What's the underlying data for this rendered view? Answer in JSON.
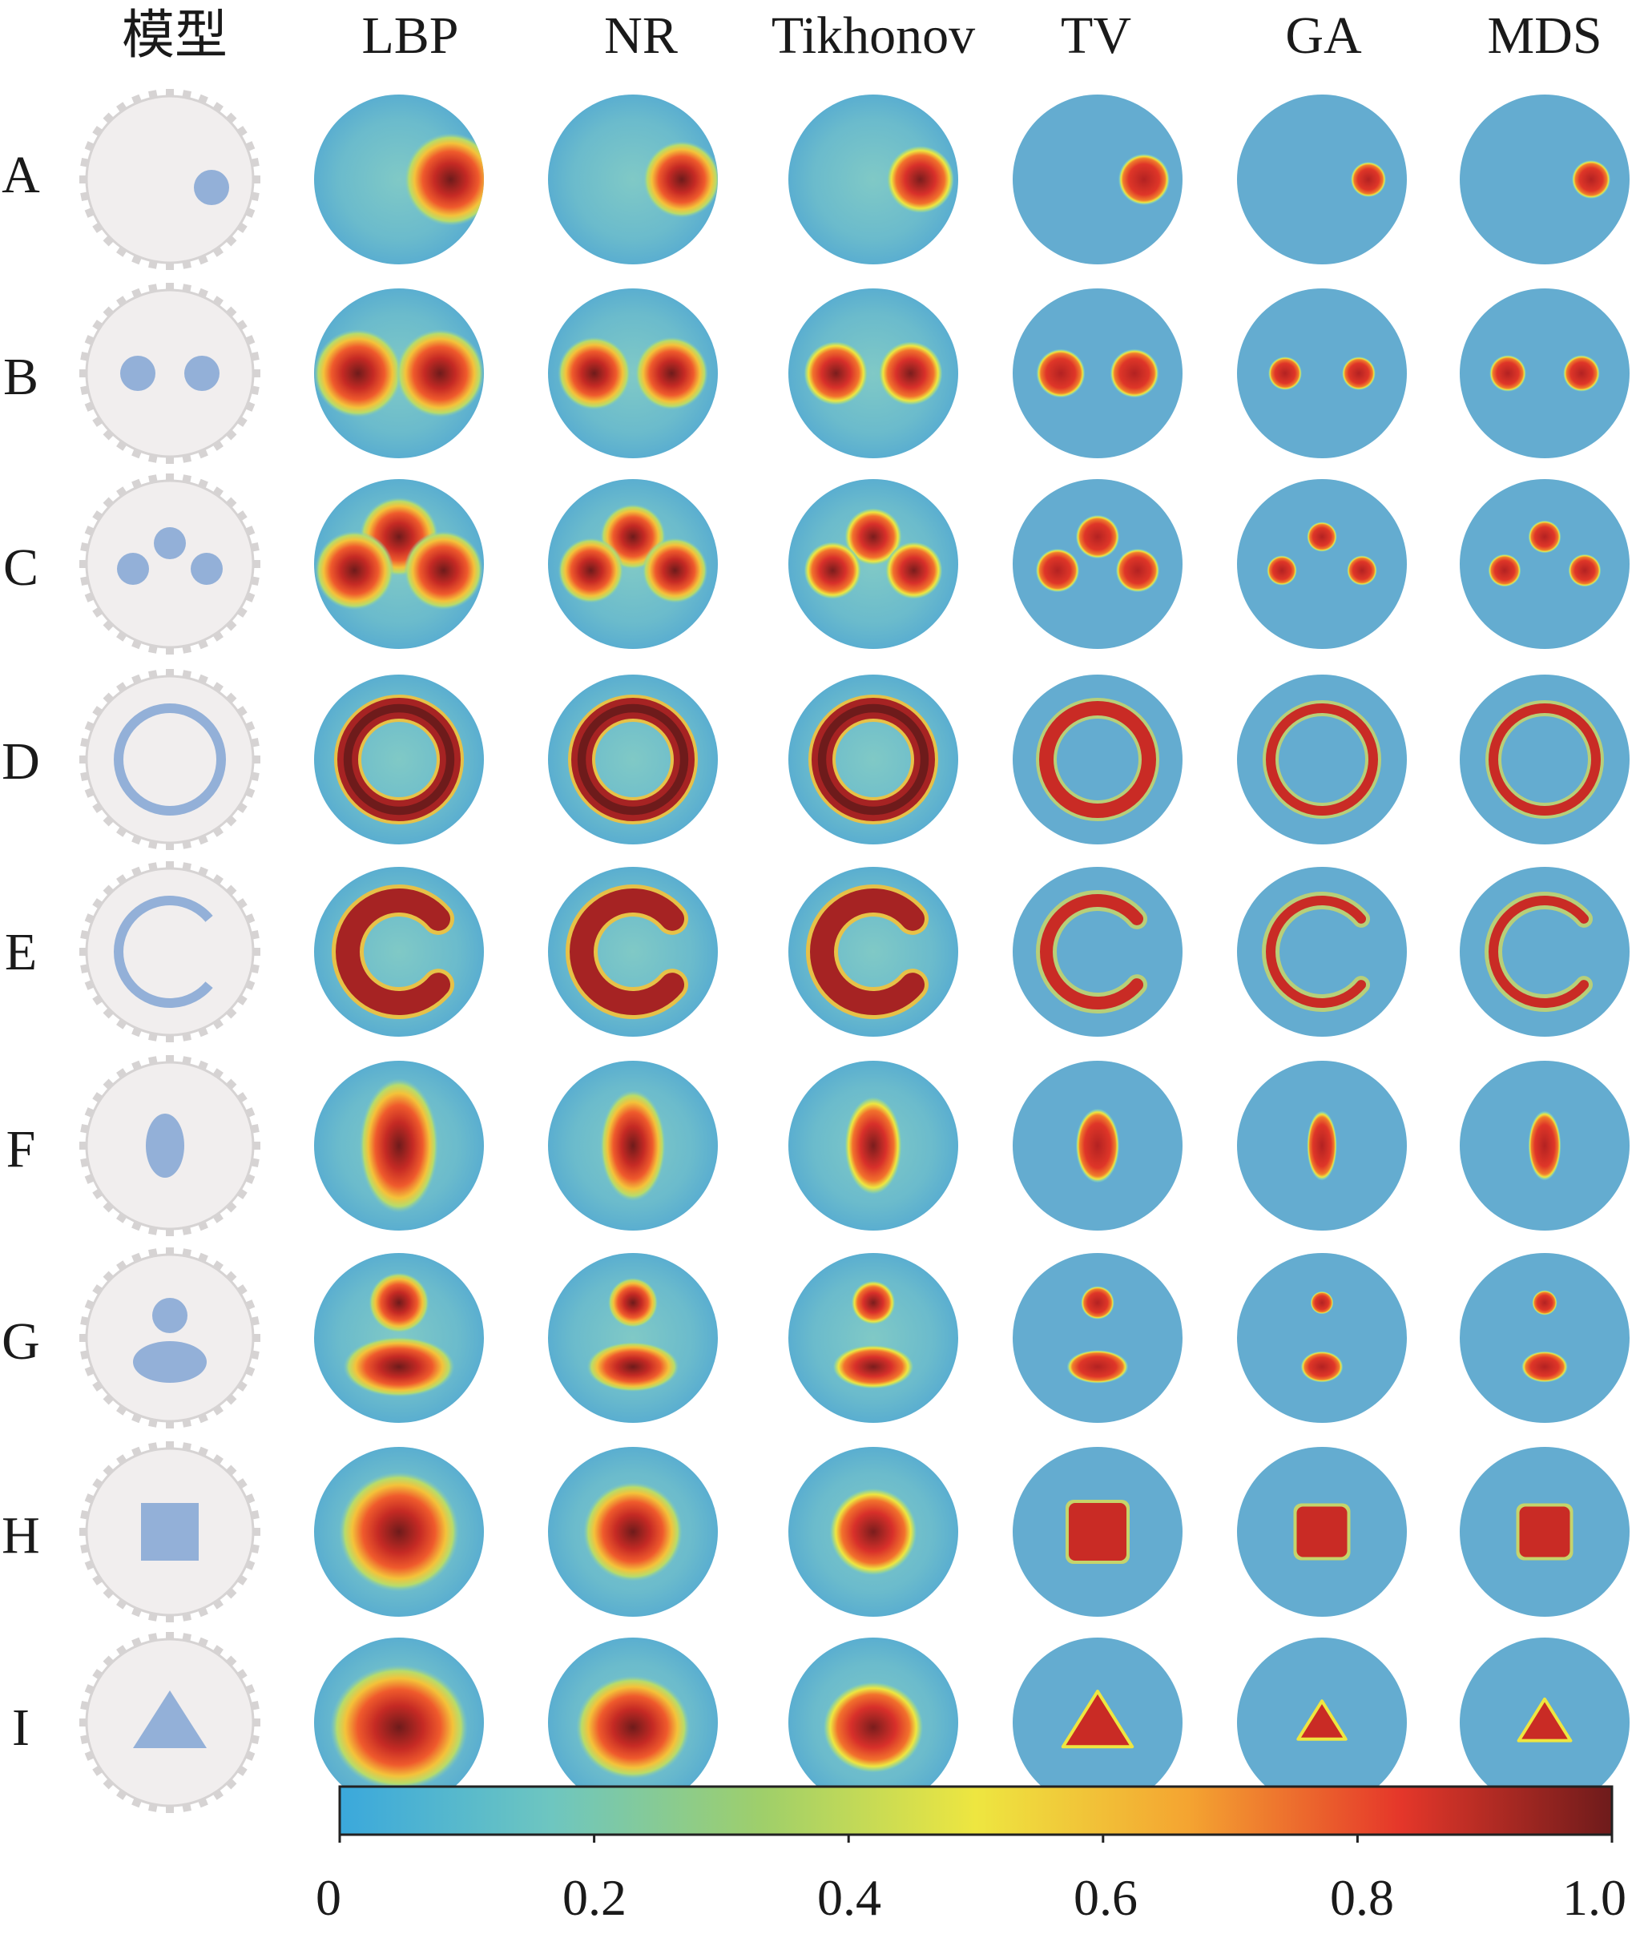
{
  "figure": {
    "columns": [
      "模型",
      "LBP",
      "NR",
      "Tikhonov",
      "TV",
      "GA",
      "MDS"
    ],
    "rows": [
      "A",
      "B",
      "C",
      "D",
      "E",
      "F",
      "G",
      "H",
      "I"
    ],
    "colorbar": {
      "ticks": [
        "0",
        "0.2",
        "0.4",
        "0.6",
        "0.8",
        "1.0"
      ],
      "tick_values": [
        0,
        0.2,
        0.4,
        0.6,
        0.8,
        1.0
      ],
      "colormap": [
        "#3aa8dc",
        "#6ec6c0",
        "#9fcf6a",
        "#eee640",
        "#f4a431",
        "#e5372a",
        "#6e1b1b"
      ]
    },
    "colors": {
      "model_disk": "#f1eeee",
      "model_electrode": "#d6d3d3",
      "model_target": "#93b0d8",
      "background_blue": "#64acd0"
    }
  }
}
